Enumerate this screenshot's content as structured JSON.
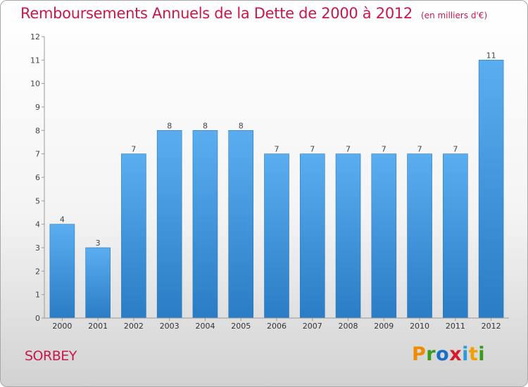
{
  "title": "Remboursements Annuels de la Dette de 2000 à 2012",
  "subtitle": "(en milliers d'€)",
  "commune": "SORBEY",
  "logo": {
    "text": "Proxiti",
    "colors": [
      "#f08a00",
      "#3a9a1a",
      "#1a6ec8",
      "#d81a2a",
      "#2a9ad8",
      "#f0a000",
      "#3a9a1a"
    ]
  },
  "colors": {
    "bar_top": "#5aaef0",
    "bar_bottom": "#2a7cc4",
    "title": "#c8184a"
  },
  "chart_data": {
    "type": "bar",
    "categories": [
      "2000",
      "2001",
      "2002",
      "2003",
      "2004",
      "2005",
      "2006",
      "2007",
      "2008",
      "2009",
      "2010",
      "2011",
      "2012"
    ],
    "values": [
      4,
      3,
      7,
      8,
      8,
      8,
      7,
      7,
      7,
      7,
      7,
      7,
      11
    ],
    "ylim": [
      0,
      12
    ],
    "yticks": [
      0,
      1,
      2,
      3,
      4,
      5,
      6,
      7,
      8,
      9,
      10,
      11,
      12
    ],
    "grid": false,
    "legend": "none"
  }
}
